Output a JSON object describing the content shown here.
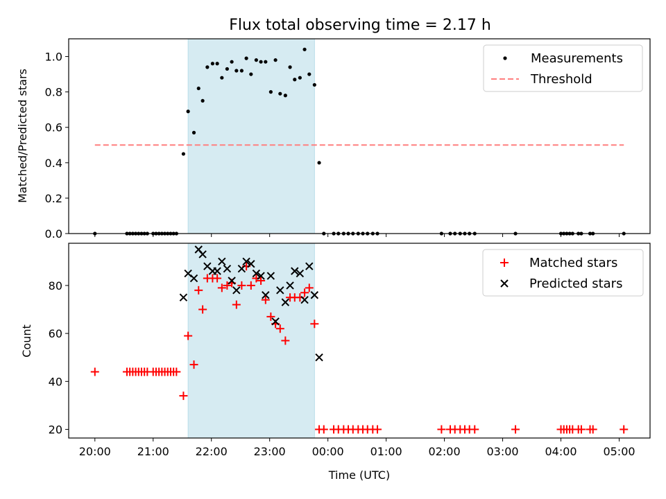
{
  "figure_title": "Flux total observing time = 2.17 h",
  "chart_data": [
    {
      "type": "scatter",
      "panel": "top",
      "title": "Flux total observing time = 2.17 h",
      "ylabel": "Matched/Predicted stars",
      "xlabel": "",
      "x_axis": "hours since 20:00 UTC, ticks hourly",
      "xlim": [
        -0.45,
        9.53
      ],
      "ylim": [
        0,
        1.1
      ],
      "yticks": [
        "0.0",
        "0.2",
        "0.4",
        "0.6",
        "0.8",
        "1.0"
      ],
      "shaded_interval": [
        1.6,
        3.77
      ],
      "legend": {
        "position": "top-right",
        "entries": [
          "Measurements",
          "Threshold"
        ]
      },
      "series": [
        {
          "name": "Measurements",
          "marker": "dot",
          "color": "#000000",
          "x": [
            0.0,
            0.55,
            0.6,
            0.65,
            0.7,
            0.75,
            0.8,
            0.85,
            0.9,
            1.0,
            1.05,
            1.1,
            1.15,
            1.2,
            1.25,
            1.3,
            1.35,
            1.4,
            1.52,
            1.6,
            1.7,
            1.78,
            1.85,
            1.93,
            2.02,
            2.1,
            2.18,
            2.27,
            2.35,
            2.43,
            2.52,
            2.6,
            2.68,
            2.77,
            2.85,
            2.93,
            3.02,
            3.1,
            3.18,
            3.27,
            3.35,
            3.43,
            3.52,
            3.6,
            3.68,
            3.77,
            3.85,
            3.93,
            4.1,
            4.18,
            4.27,
            4.35,
            4.43,
            4.52,
            4.6,
            4.68,
            4.77,
            4.85,
            5.95,
            6.1,
            6.18,
            6.27,
            6.35,
            6.43,
            6.52,
            7.22,
            8.0,
            8.05,
            8.1,
            8.15,
            8.2,
            8.3,
            8.35,
            8.5,
            8.55,
            9.08
          ],
          "y": [
            0,
            0,
            0,
            0,
            0,
            0,
            0,
            0,
            0,
            0,
            0,
            0,
            0,
            0,
            0,
            0,
            0,
            0,
            0.45,
            0.69,
            0.57,
            0.82,
            0.75,
            0.94,
            0.96,
            0.96,
            0.88,
            0.93,
            0.97,
            0.92,
            0.92,
            0.99,
            0.9,
            0.98,
            0.97,
            0.97,
            0.8,
            0.98,
            0.79,
            0.78,
            0.94,
            0.87,
            0.88,
            1.04,
            0.9,
            0.84,
            0.4,
            0,
            0,
            0,
            0,
            0,
            0,
            0,
            0,
            0,
            0,
            0,
            0,
            0,
            0,
            0,
            0,
            0,
            0,
            0,
            0,
            0,
            0,
            0,
            0,
            0,
            0,
            0,
            0,
            0
          ]
        },
        {
          "name": "Threshold",
          "marker": "dashed-line",
          "color": "#ff7f7f",
          "x": [
            0.0,
            9.08
          ],
          "y": [
            0.5,
            0.5
          ]
        }
      ]
    },
    {
      "type": "scatter",
      "panel": "bottom",
      "ylabel": "Count",
      "xlabel": "Time (UTC)",
      "x_axis": "hours since 20:00 UTC, ticks hourly",
      "xlim": [
        -0.45,
        9.53
      ],
      "ylim": [
        16.4,
        97.6
      ],
      "xticks": [
        "20:00",
        "21:00",
        "22:00",
        "23:00",
        "00:00",
        "01:00",
        "02:00",
        "03:00",
        "04:00",
        "05:00"
      ],
      "yticks": [
        "20",
        "40",
        "60",
        "80"
      ],
      "shaded_interval": [
        1.6,
        3.77
      ],
      "legend": {
        "position": "top-right",
        "entries": [
          "Matched stars",
          "Predicted stars"
        ]
      },
      "series": [
        {
          "name": "Matched stars",
          "marker": "plus",
          "color": "#ff0000",
          "x": [
            0.0,
            0.55,
            0.6,
            0.65,
            0.7,
            0.75,
            0.8,
            0.85,
            0.9,
            1.0,
            1.05,
            1.1,
            1.15,
            1.2,
            1.25,
            1.3,
            1.35,
            1.4,
            1.52,
            1.6,
            1.7,
            1.78,
            1.85,
            1.93,
            2.02,
            2.1,
            2.18,
            2.27,
            2.35,
            2.43,
            2.52,
            2.6,
            2.68,
            2.77,
            2.85,
            2.93,
            3.02,
            3.1,
            3.18,
            3.27,
            3.35,
            3.43,
            3.52,
            3.6,
            3.68,
            3.77,
            3.85,
            3.93,
            4.1,
            4.18,
            4.27,
            4.35,
            4.43,
            4.52,
            4.6,
            4.68,
            4.77,
            4.85,
            5.95,
            6.1,
            6.18,
            6.27,
            6.35,
            6.43,
            6.52,
            7.22,
            8.0,
            8.05,
            8.1,
            8.15,
            8.2,
            8.3,
            8.35,
            8.5,
            8.55,
            9.08
          ],
          "y": [
            44,
            44,
            44,
            44,
            44,
            44,
            44,
            44,
            44,
            44,
            44,
            44,
            44,
            44,
            44,
            44,
            44,
            44,
            34,
            59,
            47,
            78,
            70,
            83,
            83,
            83,
            79,
            80,
            81,
            72,
            80,
            88,
            80,
            83,
            82,
            74,
            67,
            64,
            62,
            57,
            75,
            75,
            75,
            77,
            79,
            64,
            20,
            20,
            20,
            20,
            20,
            20,
            20,
            20,
            20,
            20,
            20,
            20,
            20,
            20,
            20,
            20,
            20,
            20,
            20,
            20,
            20,
            20,
            20,
            20,
            20,
            20,
            20,
            20,
            20,
            20
          ]
        },
        {
          "name": "Predicted stars",
          "marker": "x",
          "color": "#000000",
          "x": [
            1.52,
            1.6,
            1.7,
            1.78,
            1.85,
            1.93,
            2.02,
            2.1,
            2.18,
            2.27,
            2.35,
            2.43,
            2.52,
            2.6,
            2.68,
            2.77,
            2.85,
            2.93,
            3.02,
            3.1,
            3.18,
            3.27,
            3.35,
            3.43,
            3.52,
            3.6,
            3.68,
            3.77,
            3.85
          ],
          "y": [
            75,
            85,
            83,
            95,
            93,
            88,
            86,
            86,
            90,
            87,
            82,
            78,
            87,
            90,
            89,
            85,
            84,
            76,
            84,
            65,
            78,
            73,
            80,
            86,
            85,
            74,
            88,
            76,
            50
          ]
        }
      ]
    }
  ]
}
